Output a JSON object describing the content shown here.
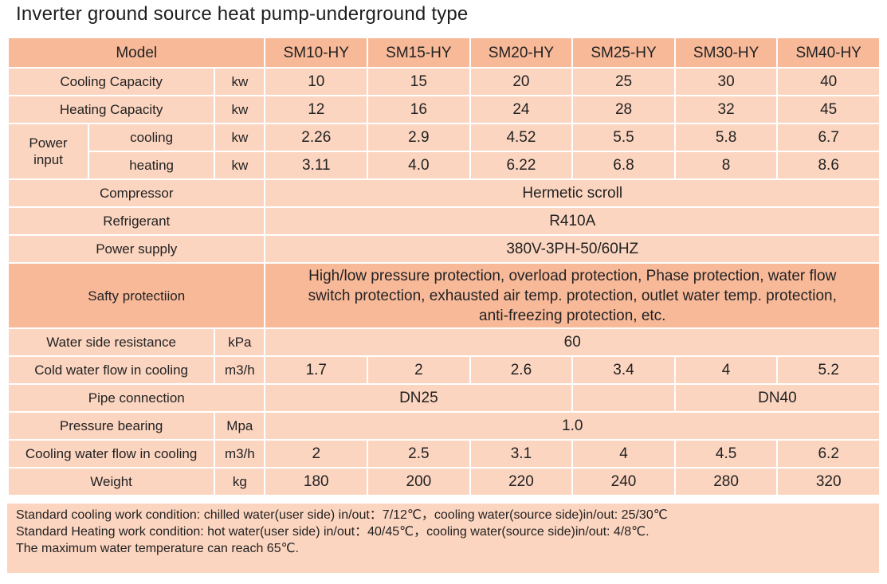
{
  "title": "Inverter ground source heat pump-underground type",
  "header": {
    "model_label": "Model",
    "models": [
      "SM10-HY",
      "SM15-HY",
      "SM20-HY",
      "SM25-HY",
      "SM30-HY",
      "SM40-HY"
    ]
  },
  "rows": {
    "cooling_capacity": {
      "label": "Cooling Capacity",
      "unit": "kw",
      "values": [
        "10",
        "15",
        "20",
        "25",
        "30",
        "40"
      ]
    },
    "heating_capacity": {
      "label": "Heating Capacity",
      "unit": "kw",
      "values": [
        "12",
        "16",
        "24",
        "28",
        "32",
        "45"
      ]
    },
    "power_input": {
      "label": "Power input",
      "cooling": {
        "label": "cooling",
        "unit": "kw",
        "values": [
          "2.26",
          "2.9",
          "4.52",
          "5.5",
          "5.8",
          "6.7"
        ]
      },
      "heating": {
        "label": "heating",
        "unit": "kw",
        "values": [
          "3.11",
          "4.0",
          "6.22",
          "6.8",
          "8",
          "8.6"
        ]
      }
    },
    "compressor": {
      "label": "Compressor",
      "value": "Hermetic scroll"
    },
    "refrigerant": {
      "label": "Refrigerant",
      "value": "R410A"
    },
    "power_supply": {
      "label": "Power supply",
      "value": "380V-3PH-50/60HZ"
    },
    "safety_protection": {
      "label": "Safty protectiion",
      "lines": [
        "High/low pressure protection, overload protection, Phase protection, water flow",
        "switch protection, exhausted air temp. protection, outlet water temp. protection,",
        "anti-freezing protection, etc."
      ]
    },
    "water_side_resistance": {
      "label": "Water side resistance",
      "unit": "kPa",
      "value": "60"
    },
    "cold_water_flow": {
      "label": "Cold water flow in cooling",
      "unit": "m3/h",
      "values": [
        "1.7",
        "2",
        "2.6",
        "3.4",
        "4",
        "5.2"
      ]
    },
    "pipe_connection": {
      "label": "Pipe connection",
      "value_small": "DN25",
      "value_large": "DN40"
    },
    "pressure_bearing": {
      "label": "Pressure bearing",
      "unit": "Mpa",
      "value": "1.0"
    },
    "cooling_water_flow": {
      "label": "Cooling water flow in cooling",
      "unit": "m3/h",
      "values": [
        "2",
        "2.5",
        "3.1",
        "4",
        "4.5",
        "6.2"
      ]
    },
    "weight": {
      "label": "Weight",
      "unit": "kg",
      "values": [
        "180",
        "200",
        "220",
        "240",
        "280",
        "320"
      ]
    }
  },
  "notes": [
    "Standard cooling work condition: chilled water(user side) in/out：7/12℃，cooling water(source side)in/out: 25/30℃",
    "Standard Heating work condition: hot water(user side) in/out：40/45℃，cooling water(source side)in/out: 4/8℃.",
    "The maximum water temperature can reach 65℃."
  ],
  "colors": {
    "header_fill": "#f8b999",
    "cell_fill": "#fcd5c0"
  }
}
